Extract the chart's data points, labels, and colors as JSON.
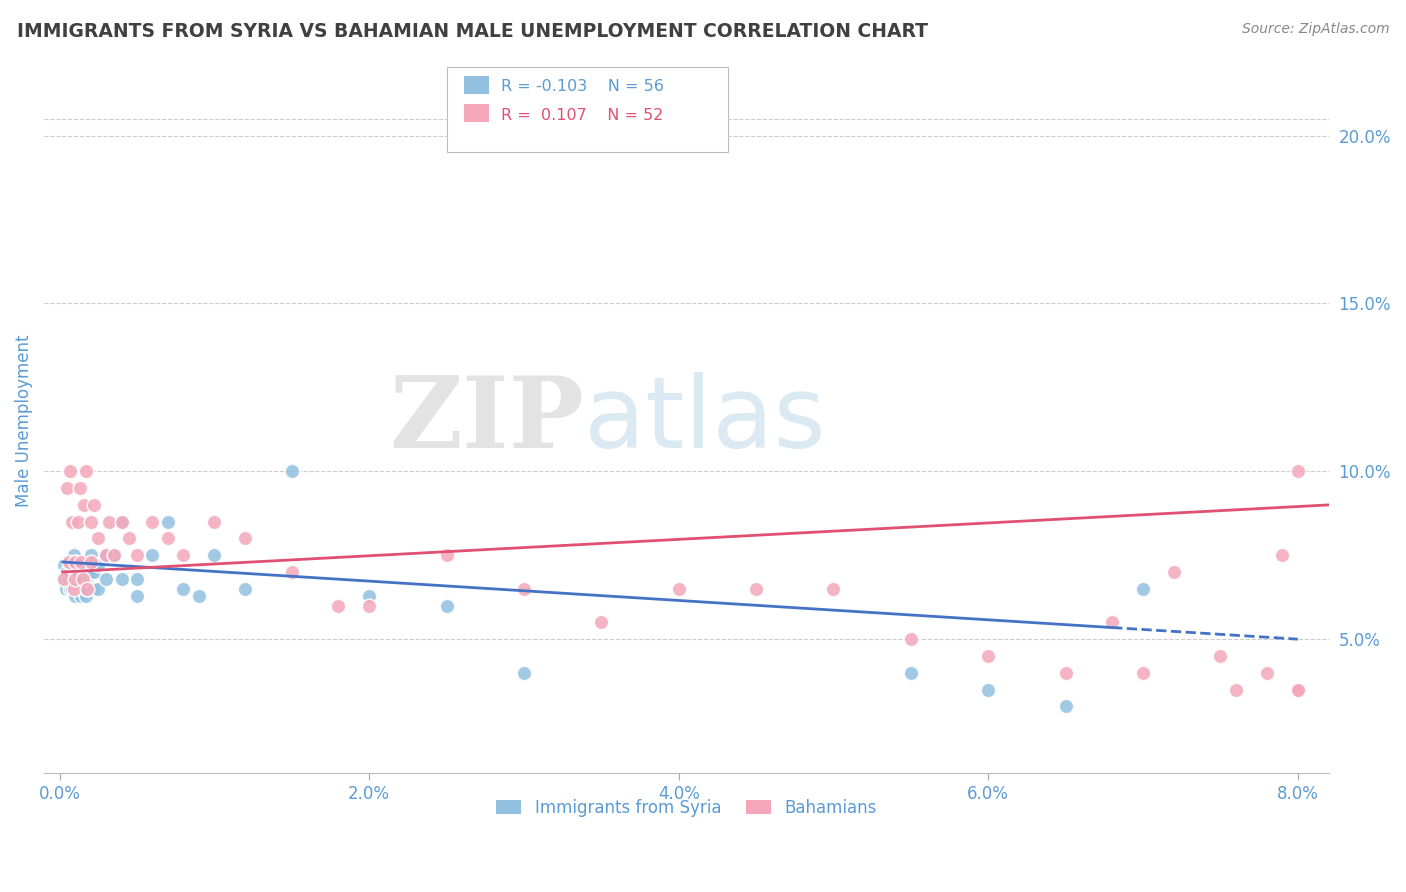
{
  "title": "IMMIGRANTS FROM SYRIA VS BAHAMIAN MALE UNEMPLOYMENT CORRELATION CHART",
  "source": "Source: ZipAtlas.com",
  "ylabel": "Male Unemployment",
  "xlim": [
    -0.001,
    0.082
  ],
  "ylim": [
    0.01,
    0.22
  ],
  "right_yticks": [
    0.05,
    0.1,
    0.15,
    0.2
  ],
  "right_yticklabels": [
    "5.0%",
    "10.0%",
    "15.0%",
    "20.0%"
  ],
  "xticks": [
    0.0,
    0.02,
    0.04,
    0.06,
    0.08
  ],
  "xticklabels": [
    "0.0%",
    "2.0%",
    "4.0%",
    "6.0%",
    "8.0%"
  ],
  "blue_color": "#92C0E0",
  "pink_color": "#F4A7B9",
  "blue_line_color": "#4472C4",
  "pink_line_color": "#E05070",
  "grid_color": "#CCCCCC",
  "tick_color": "#5B9BD5",
  "title_color": "#404040",
  "source_color": "#888888",
  "legend_r1": "R = -0.103",
  "legend_n1": "N = 56",
  "legend_r2": "R =  0.107",
  "legend_n2": "N = 52",
  "legend_label1": "Immigrants from Syria",
  "legend_label2": "Bahamians",
  "watermark1": "ZIP",
  "watermark2": "atlas",
  "blue_x": [
    0.0002,
    0.0003,
    0.0004,
    0.0005,
    0.0006,
    0.0006,
    0.0007,
    0.0007,
    0.0008,
    0.0008,
    0.0009,
    0.0009,
    0.001,
    0.001,
    0.001,
    0.0012,
    0.0012,
    0.0013,
    0.0013,
    0.0014,
    0.0014,
    0.0015,
    0.0015,
    0.0016,
    0.0016,
    0.0017,
    0.0017,
    0.0018,
    0.0018,
    0.002,
    0.002,
    0.0022,
    0.0022,
    0.0025,
    0.0025,
    0.003,
    0.003,
    0.0035,
    0.004,
    0.004,
    0.005,
    0.005,
    0.006,
    0.007,
    0.008,
    0.009,
    0.01,
    0.012,
    0.015,
    0.02,
    0.025,
    0.03,
    0.055,
    0.06,
    0.065,
    0.07
  ],
  "blue_y": [
    0.068,
    0.072,
    0.065,
    0.07,
    0.068,
    0.073,
    0.065,
    0.07,
    0.065,
    0.072,
    0.068,
    0.075,
    0.063,
    0.068,
    0.073,
    0.065,
    0.07,
    0.065,
    0.072,
    0.063,
    0.068,
    0.065,
    0.072,
    0.065,
    0.07,
    0.063,
    0.068,
    0.065,
    0.072,
    0.07,
    0.075,
    0.065,
    0.07,
    0.065,
    0.072,
    0.075,
    0.068,
    0.075,
    0.068,
    0.085,
    0.063,
    0.068,
    0.075,
    0.085,
    0.065,
    0.063,
    0.075,
    0.065,
    0.1,
    0.063,
    0.06,
    0.04,
    0.04,
    0.035,
    0.03,
    0.065
  ],
  "pink_x": [
    0.0003,
    0.0005,
    0.0006,
    0.0007,
    0.0008,
    0.0009,
    0.001,
    0.001,
    0.0012,
    0.0013,
    0.0014,
    0.0015,
    0.0016,
    0.0017,
    0.0018,
    0.002,
    0.002,
    0.0022,
    0.0025,
    0.003,
    0.0032,
    0.0035,
    0.004,
    0.0045,
    0.005,
    0.006,
    0.007,
    0.008,
    0.01,
    0.012,
    0.015,
    0.018,
    0.02,
    0.025,
    0.03,
    0.035,
    0.04,
    0.045,
    0.05,
    0.055,
    0.06,
    0.065,
    0.068,
    0.07,
    0.072,
    0.075,
    0.076,
    0.078,
    0.079,
    0.08,
    0.08,
    0.08
  ],
  "pink_y": [
    0.068,
    0.095,
    0.073,
    0.1,
    0.085,
    0.065,
    0.068,
    0.073,
    0.085,
    0.095,
    0.073,
    0.068,
    0.09,
    0.1,
    0.065,
    0.073,
    0.085,
    0.09,
    0.08,
    0.075,
    0.085,
    0.075,
    0.085,
    0.08,
    0.075,
    0.085,
    0.08,
    0.075,
    0.085,
    0.08,
    0.07,
    0.06,
    0.06,
    0.075,
    0.065,
    0.055,
    0.065,
    0.065,
    0.065,
    0.05,
    0.045,
    0.04,
    0.055,
    0.04,
    0.07,
    0.045,
    0.035,
    0.04,
    0.075,
    0.035,
    0.1,
    0.035
  ],
  "blue_trend_x": [
    0.0002,
    0.08
  ],
  "blue_trend_y": [
    0.073,
    0.05
  ],
  "pink_trend_x": [
    0.0002,
    0.082
  ],
  "pink_trend_y": [
    0.07,
    0.09
  ]
}
